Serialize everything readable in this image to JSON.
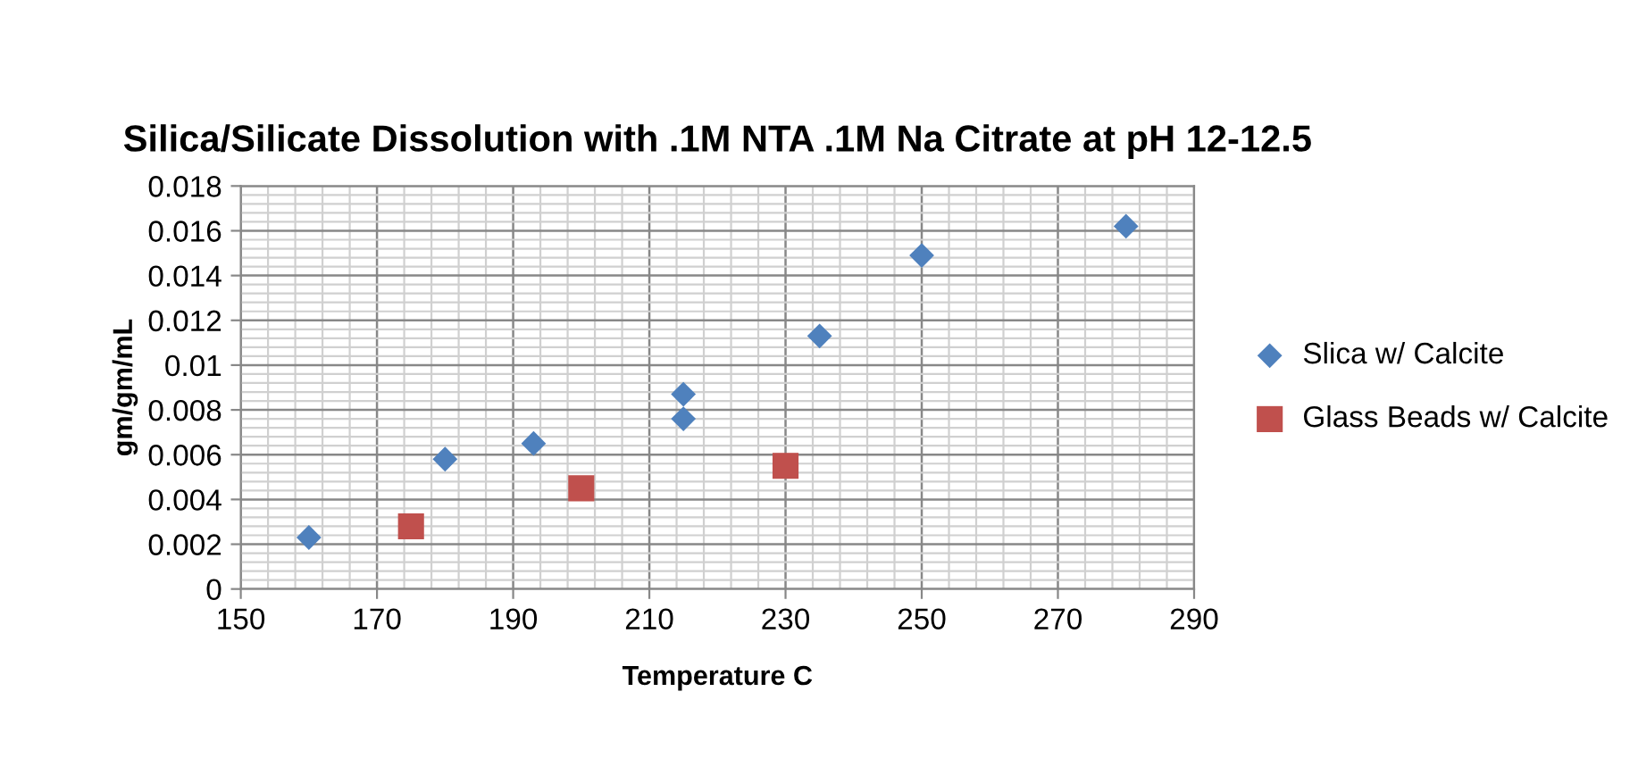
{
  "chart_data": {
    "type": "scatter",
    "title": "Silica/Silicate Dissolution with .1M NTA .1M Na Citrate at pH 12-12.5",
    "xlabel": "Temperature C",
    "ylabel": "gm/gm/mL",
    "series": [
      {
        "name": "Slica w/ Calcite",
        "color": "#4f81bd",
        "marker": "diamond",
        "x": [
          160,
          180,
          193,
          215,
          215,
          235,
          250,
          280
        ],
        "values": [
          0.0023,
          0.0058,
          0.0065,
          0.0087,
          0.0076,
          0.0113,
          0.0149,
          0.0162
        ]
      },
      {
        "name": "Glass Beads w/ Calcite",
        "color": "#c0504d",
        "marker": "square",
        "x": [
          175,
          200,
          230
        ],
        "values": [
          0.0028,
          0.0045,
          0.0055
        ]
      }
    ],
    "xlim": [
      150,
      290
    ],
    "xticks": [
      150,
      170,
      190,
      210,
      230,
      250,
      270,
      290
    ],
    "ylim": [
      0,
      0.018
    ],
    "yticks": [
      0,
      0.002,
      0.004,
      0.006,
      0.008,
      0.01,
      0.012,
      0.014,
      0.016,
      0.018
    ],
    "grid": true,
    "legend": "right"
  }
}
